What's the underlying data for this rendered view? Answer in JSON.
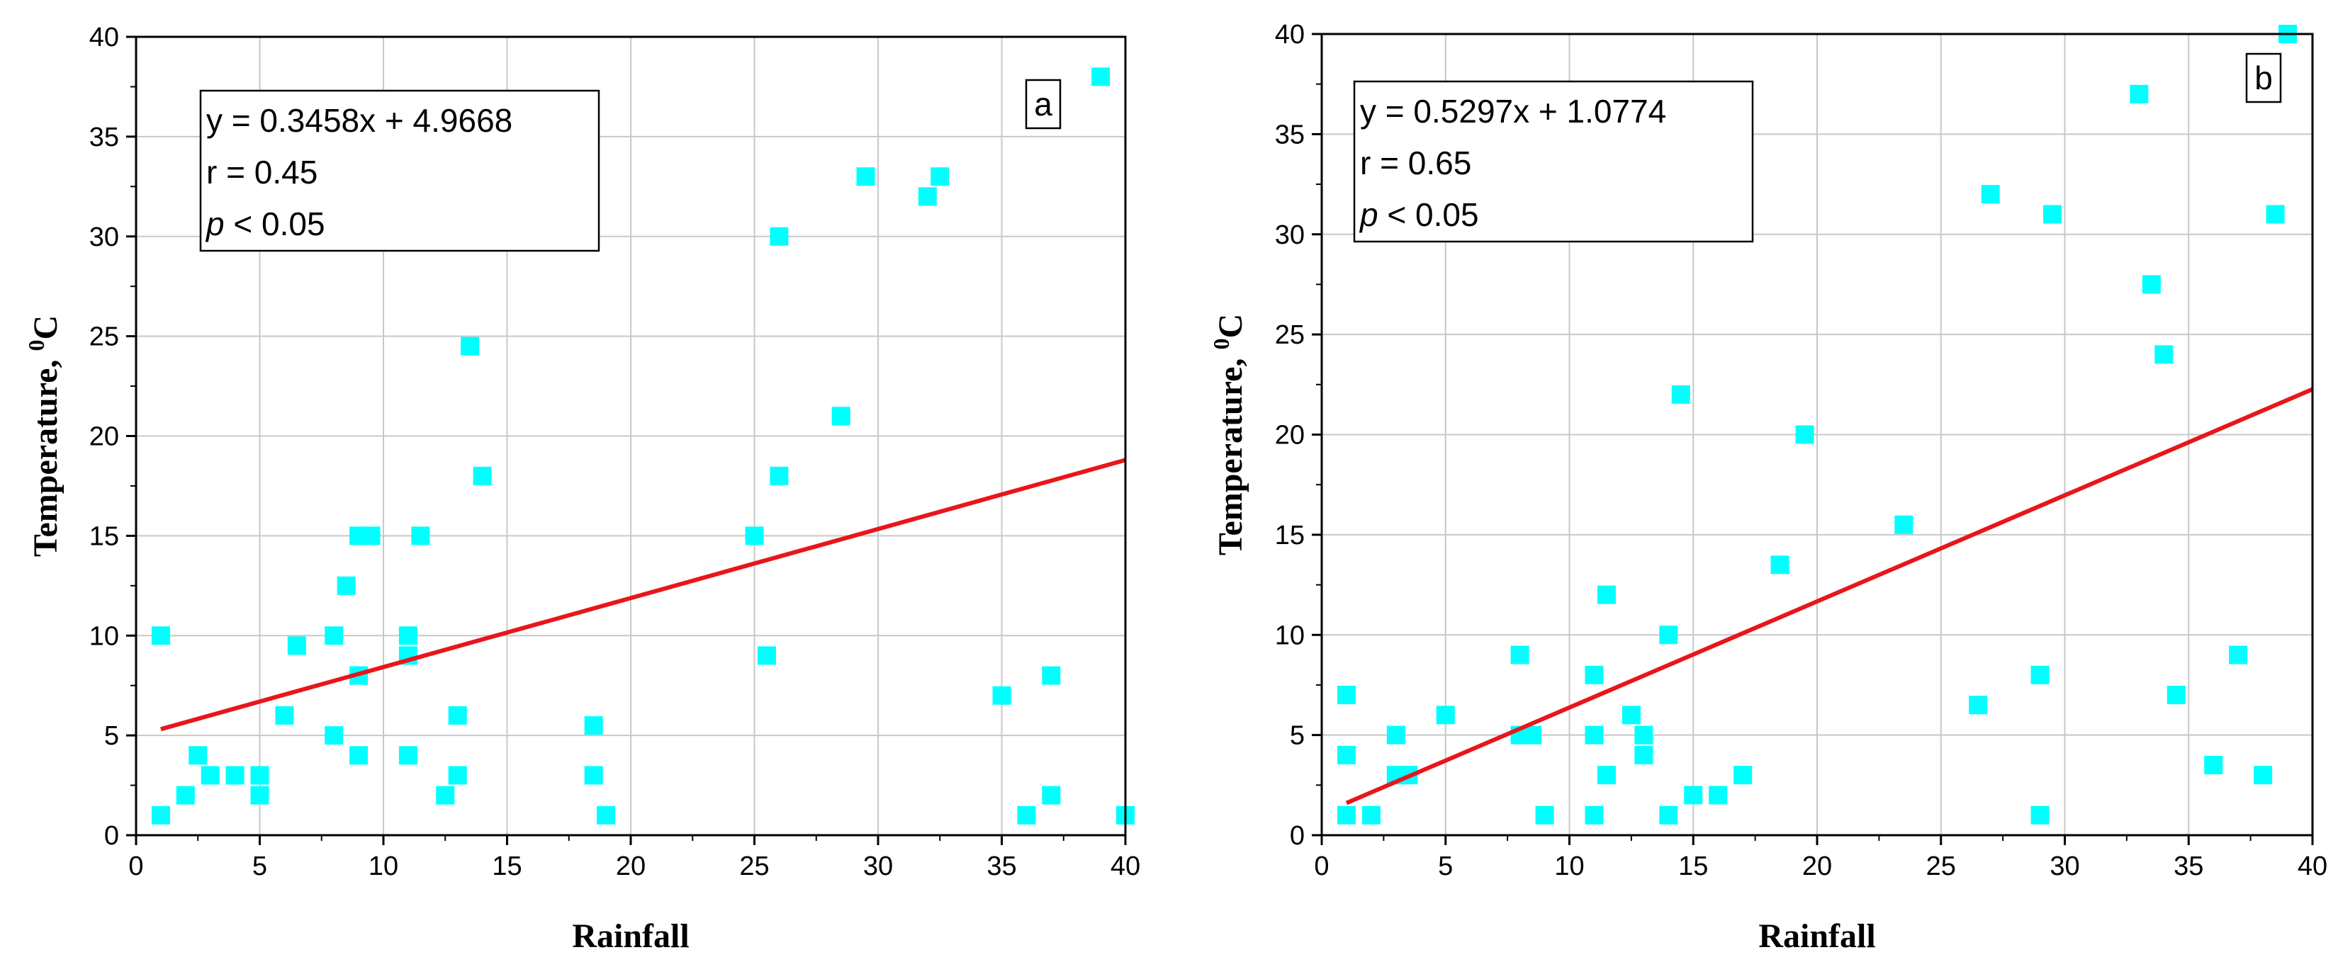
{
  "chart_data": [
    {
      "type": "scatter",
      "panel_label": "a",
      "xlabel": "Rainfall",
      "ylabel": "Temperature, ",
      "ylabel_sup": "0",
      "ylabel_unit": "C",
      "xlim": [
        0,
        40
      ],
      "ylim": [
        0,
        40
      ],
      "xticks": [
        0,
        5,
        10,
        15,
        20,
        25,
        30,
        35,
        40
      ],
      "yticks": [
        0,
        5,
        10,
        15,
        20,
        25,
        30,
        35,
        40
      ],
      "grid": true,
      "point_color": "#00FFFF",
      "line_color": "#E8161B",
      "annotation": {
        "equation": "y = 0.3458x + 4.9668",
        "r": "r = 0.45",
        "p_symbol": "p",
        "p_text": " < 0.05"
      },
      "fit": {
        "slope": 0.3458,
        "intercept": 4.9668,
        "x_range": [
          1,
          40
        ]
      },
      "points": [
        [
          1,
          10
        ],
        [
          1,
          1
        ],
        [
          2,
          2
        ],
        [
          2.5,
          4
        ],
        [
          3,
          3
        ],
        [
          4,
          3
        ],
        [
          5,
          3
        ],
        [
          5,
          2
        ],
        [
          6,
          6
        ],
        [
          6.5,
          9.5
        ],
        [
          8,
          10
        ],
        [
          8,
          5
        ],
        [
          8.5,
          12.5
        ],
        [
          9,
          15
        ],
        [
          9.5,
          15
        ],
        [
          9,
          8
        ],
        [
          9,
          4
        ],
        [
          11,
          10
        ],
        [
          11,
          9
        ],
        [
          11,
          4
        ],
        [
          11.5,
          15
        ],
        [
          12.5,
          2
        ],
        [
          13,
          6
        ],
        [
          13,
          3
        ],
        [
          13.5,
          24.5
        ],
        [
          14,
          18
        ],
        [
          18.5,
          5.5
        ],
        [
          18.5,
          3
        ],
        [
          19,
          1
        ],
        [
          25,
          15
        ],
        [
          25.5,
          9
        ],
        [
          26,
          30
        ],
        [
          26,
          18
        ],
        [
          28.5,
          21
        ],
        [
          29.5,
          33
        ],
        [
          32,
          32
        ],
        [
          32.5,
          33
        ],
        [
          35,
          7
        ],
        [
          36,
          1
        ],
        [
          37,
          8
        ],
        [
          37,
          2
        ],
        [
          39,
          38
        ],
        [
          40,
          1
        ]
      ]
    },
    {
      "type": "scatter",
      "panel_label": "b",
      "xlabel": "Rainfall",
      "ylabel": "Temperature, ",
      "ylabel_sup": "0",
      "ylabel_unit": "C",
      "xlim": [
        0,
        40
      ],
      "ylim": [
        0,
        40
      ],
      "xticks": [
        0,
        5,
        10,
        15,
        20,
        25,
        30,
        35,
        40
      ],
      "yticks": [
        0,
        5,
        10,
        15,
        20,
        25,
        30,
        35,
        40
      ],
      "grid": true,
      "point_color": "#00FFFF",
      "line_color": "#E8161B",
      "annotation": {
        "equation": "y = 0.5297x + 1.0774",
        "r": "r = 0.65",
        "p_symbol": "p",
        "p_text": " < 0.05"
      },
      "fit": {
        "slope": 0.5297,
        "intercept": 1.0774,
        "x_range": [
          1,
          40
        ]
      },
      "points": [
        [
          1,
          7
        ],
        [
          1,
          4
        ],
        [
          1,
          1
        ],
        [
          2,
          1
        ],
        [
          3,
          5
        ],
        [
          3,
          3
        ],
        [
          3.5,
          3
        ],
        [
          5,
          6
        ],
        [
          8,
          9
        ],
        [
          8,
          5
        ],
        [
          8.5,
          5
        ],
        [
          9,
          1
        ],
        [
          11,
          8
        ],
        [
          11,
          5
        ],
        [
          11,
          1
        ],
        [
          11.5,
          12
        ],
        [
          11.5,
          3
        ],
        [
          12.5,
          6
        ],
        [
          13,
          5
        ],
        [
          13,
          4
        ],
        [
          14,
          10
        ],
        [
          14,
          1
        ],
        [
          14.5,
          22
        ],
        [
          15,
          2
        ],
        [
          16,
          2
        ],
        [
          17,
          3
        ],
        [
          18.5,
          13.5
        ],
        [
          19.5,
          20
        ],
        [
          23.5,
          15.5
        ],
        [
          26.5,
          6.5
        ],
        [
          27,
          32
        ],
        [
          29,
          8
        ],
        [
          29,
          1
        ],
        [
          29.5,
          31
        ],
        [
          33,
          37
        ],
        [
          33.5,
          27.5
        ],
        [
          34,
          24
        ],
        [
          34.5,
          7
        ],
        [
          36,
          3.5
        ],
        [
          37,
          9
        ],
        [
          38,
          3
        ],
        [
          38.5,
          31
        ],
        [
          39,
          40
        ]
      ]
    }
  ]
}
